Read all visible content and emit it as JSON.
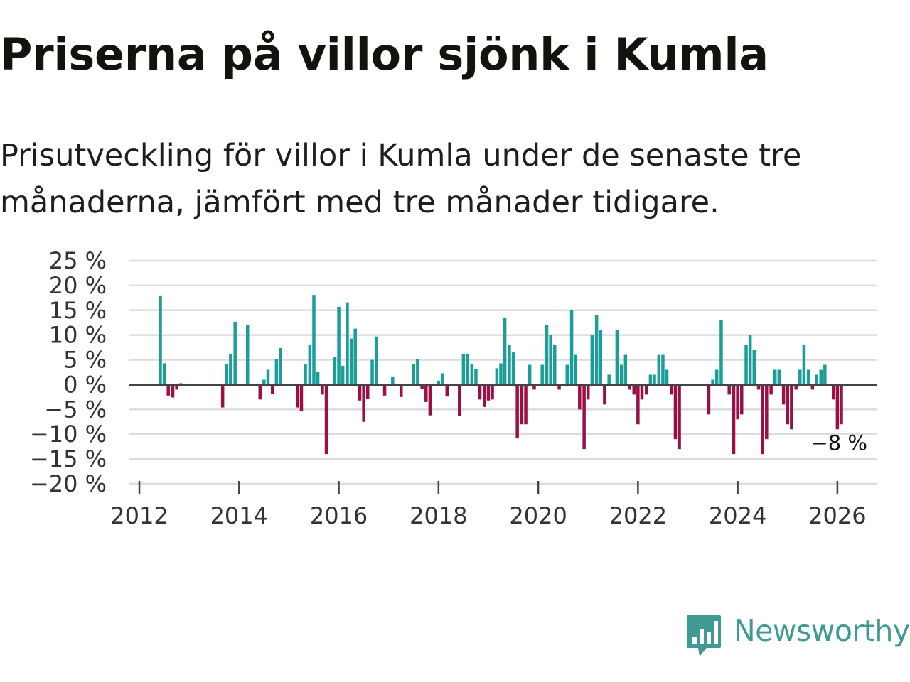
{
  "title": "Priserna på villor sjönk i Kumla",
  "subtitle": "Prisutveckling för villor i Kumla under de senaste tre månaderna, jämfört med tre månader tidigare.",
  "brand": {
    "name": "Newsworthy"
  },
  "colors": {
    "positive": "#1a9e97",
    "negative": "#9c0f45",
    "grid": "#dcdcdc",
    "zero_line": "#444444",
    "text": "#333333"
  },
  "chart_data": {
    "type": "bar",
    "title": "Priserna på villor sjönk i Kumla",
    "xlabel": "",
    "ylabel": "",
    "ylim": [
      -20,
      25
    ],
    "yticks": [
      25,
      20,
      15,
      10,
      5,
      0,
      -5,
      -10,
      -15,
      -20
    ],
    "ytick_labels": [
      "25 %",
      "20 %",
      "15 %",
      "10 %",
      "5 %",
      "0 %",
      "−5 %",
      "−10 %",
      "−15 %",
      "−20 %"
    ],
    "xlim": [
      2011.8,
      2026.8
    ],
    "xticks": [
      2012,
      2014,
      2016,
      2018,
      2020,
      2022,
      2024,
      2026
    ],
    "xtick_labels": [
      "2012",
      "2014",
      "2016",
      "2018",
      "2020",
      "2022",
      "2024",
      "2026"
    ],
    "grid": true,
    "annotation": {
      "text": "−8 %",
      "value": -8
    },
    "points": [
      {
        "x": 2012.42,
        "y": 18
      },
      {
        "x": 2012.5,
        "y": 4.3
      },
      {
        "x": 2012.58,
        "y": -2.2
      },
      {
        "x": 2012.67,
        "y": -2.6
      },
      {
        "x": 2012.75,
        "y": -1
      },
      {
        "x": 2012.83,
        "y": 0.3
      },
      {
        "x": 2013.67,
        "y": -4.6
      },
      {
        "x": 2013.75,
        "y": 4.2
      },
      {
        "x": 2013.83,
        "y": 6.2
      },
      {
        "x": 2013.92,
        "y": 12.7
      },
      {
        "x": 2014.17,
        "y": 12.1
      },
      {
        "x": 2014.42,
        "y": -3
      },
      {
        "x": 2014.5,
        "y": 1
      },
      {
        "x": 2014.58,
        "y": 3
      },
      {
        "x": 2014.67,
        "y": -1.8
      },
      {
        "x": 2014.75,
        "y": 5.1
      },
      {
        "x": 2014.83,
        "y": 7.4
      },
      {
        "x": 2015.17,
        "y": -4.6
      },
      {
        "x": 2015.25,
        "y": -5.4
      },
      {
        "x": 2015.33,
        "y": 4.2
      },
      {
        "x": 2015.42,
        "y": 8
      },
      {
        "x": 2015.5,
        "y": 18.1
      },
      {
        "x": 2015.58,
        "y": 2.6
      },
      {
        "x": 2015.67,
        "y": -2
      },
      {
        "x": 2015.75,
        "y": -14
      },
      {
        "x": 2015.92,
        "y": 5.6
      },
      {
        "x": 2016.0,
        "y": 15.7
      },
      {
        "x": 2016.08,
        "y": 3.8
      },
      {
        "x": 2016.17,
        "y": 16.6
      },
      {
        "x": 2016.25,
        "y": 9.3
      },
      {
        "x": 2016.33,
        "y": 11.3
      },
      {
        "x": 2016.42,
        "y": -3.2
      },
      {
        "x": 2016.5,
        "y": -7.5
      },
      {
        "x": 2016.58,
        "y": -2.9
      },
      {
        "x": 2016.67,
        "y": 5
      },
      {
        "x": 2016.75,
        "y": 9.7
      },
      {
        "x": 2016.92,
        "y": -2.2
      },
      {
        "x": 2017.08,
        "y": 1.5
      },
      {
        "x": 2017.25,
        "y": -2.5
      },
      {
        "x": 2017.5,
        "y": 4.1
      },
      {
        "x": 2017.58,
        "y": 5.2
      },
      {
        "x": 2017.67,
        "y": -0.8
      },
      {
        "x": 2017.75,
        "y": -3.5
      },
      {
        "x": 2017.83,
        "y": -6.2
      },
      {
        "x": 2017.92,
        "y": 0.2
      },
      {
        "x": 2018.0,
        "y": 0.8
      },
      {
        "x": 2018.08,
        "y": 2.3
      },
      {
        "x": 2018.17,
        "y": -2.4
      },
      {
        "x": 2018.33,
        "y": 0.2
      },
      {
        "x": 2018.42,
        "y": -6.3
      },
      {
        "x": 2018.5,
        "y": 6.1
      },
      {
        "x": 2018.58,
        "y": 6.1
      },
      {
        "x": 2018.67,
        "y": 4.1
      },
      {
        "x": 2018.75,
        "y": 3.1
      },
      {
        "x": 2018.83,
        "y": -3
      },
      {
        "x": 2018.92,
        "y": -4.5
      },
      {
        "x": 2019.0,
        "y": -3.2
      },
      {
        "x": 2019.08,
        "y": -3
      },
      {
        "x": 2019.17,
        "y": 3.3
      },
      {
        "x": 2019.25,
        "y": 4.3
      },
      {
        "x": 2019.33,
        "y": 13.5
      },
      {
        "x": 2019.42,
        "y": 8.1
      },
      {
        "x": 2019.5,
        "y": 6.5
      },
      {
        "x": 2019.58,
        "y": -10.8
      },
      {
        "x": 2019.67,
        "y": -8
      },
      {
        "x": 2019.75,
        "y": -8
      },
      {
        "x": 2019.83,
        "y": 4
      },
      {
        "x": 2019.92,
        "y": -1
      },
      {
        "x": 2020.08,
        "y": 4
      },
      {
        "x": 2020.17,
        "y": 12
      },
      {
        "x": 2020.25,
        "y": 10
      },
      {
        "x": 2020.33,
        "y": 8
      },
      {
        "x": 2020.42,
        "y": -1
      },
      {
        "x": 2020.58,
        "y": 4
      },
      {
        "x": 2020.67,
        "y": 15
      },
      {
        "x": 2020.75,
        "y": 6
      },
      {
        "x": 2020.83,
        "y": -5
      },
      {
        "x": 2020.92,
        "y": -13
      },
      {
        "x": 2021.0,
        "y": -3
      },
      {
        "x": 2021.08,
        "y": 10
      },
      {
        "x": 2021.17,
        "y": 14
      },
      {
        "x": 2021.25,
        "y": 11
      },
      {
        "x": 2021.33,
        "y": -4
      },
      {
        "x": 2021.42,
        "y": 2
      },
      {
        "x": 2021.58,
        "y": 11
      },
      {
        "x": 2021.67,
        "y": 4
      },
      {
        "x": 2021.75,
        "y": 6
      },
      {
        "x": 2021.83,
        "y": -1
      },
      {
        "x": 2021.92,
        "y": -2
      },
      {
        "x": 2022.0,
        "y": -8
      },
      {
        "x": 2022.08,
        "y": -3
      },
      {
        "x": 2022.17,
        "y": -2
      },
      {
        "x": 2022.25,
        "y": 2
      },
      {
        "x": 2022.33,
        "y": 2
      },
      {
        "x": 2022.42,
        "y": 6
      },
      {
        "x": 2022.5,
        "y": 6
      },
      {
        "x": 2022.58,
        "y": 3
      },
      {
        "x": 2022.67,
        "y": -2
      },
      {
        "x": 2022.75,
        "y": -11
      },
      {
        "x": 2022.83,
        "y": -13
      },
      {
        "x": 2023.42,
        "y": -6
      },
      {
        "x": 2023.5,
        "y": 1
      },
      {
        "x": 2023.58,
        "y": 3
      },
      {
        "x": 2023.67,
        "y": 13
      },
      {
        "x": 2023.83,
        "y": -2
      },
      {
        "x": 2023.92,
        "y": -14
      },
      {
        "x": 2024.0,
        "y": -7
      },
      {
        "x": 2024.08,
        "y": -6
      },
      {
        "x": 2024.17,
        "y": 8
      },
      {
        "x": 2024.25,
        "y": 10
      },
      {
        "x": 2024.33,
        "y": 7
      },
      {
        "x": 2024.42,
        "y": -1
      },
      {
        "x": 2024.5,
        "y": -14
      },
      {
        "x": 2024.58,
        "y": -11
      },
      {
        "x": 2024.67,
        "y": -2
      },
      {
        "x": 2024.75,
        "y": 3
      },
      {
        "x": 2024.83,
        "y": 3
      },
      {
        "x": 2024.92,
        "y": -4
      },
      {
        "x": 2025.0,
        "y": -8
      },
      {
        "x": 2025.08,
        "y": -9
      },
      {
        "x": 2025.17,
        "y": -1
      },
      {
        "x": 2025.25,
        "y": 3
      },
      {
        "x": 2025.33,
        "y": 8
      },
      {
        "x": 2025.42,
        "y": 3
      },
      {
        "x": 2025.5,
        "y": -1
      },
      {
        "x": 2025.58,
        "y": 2
      },
      {
        "x": 2025.67,
        "y": 3
      },
      {
        "x": 2025.75,
        "y": 4
      },
      {
        "x": 2025.92,
        "y": -3
      },
      {
        "x": 2026.0,
        "y": -9
      },
      {
        "x": 2026.08,
        "y": -8
      }
    ]
  }
}
